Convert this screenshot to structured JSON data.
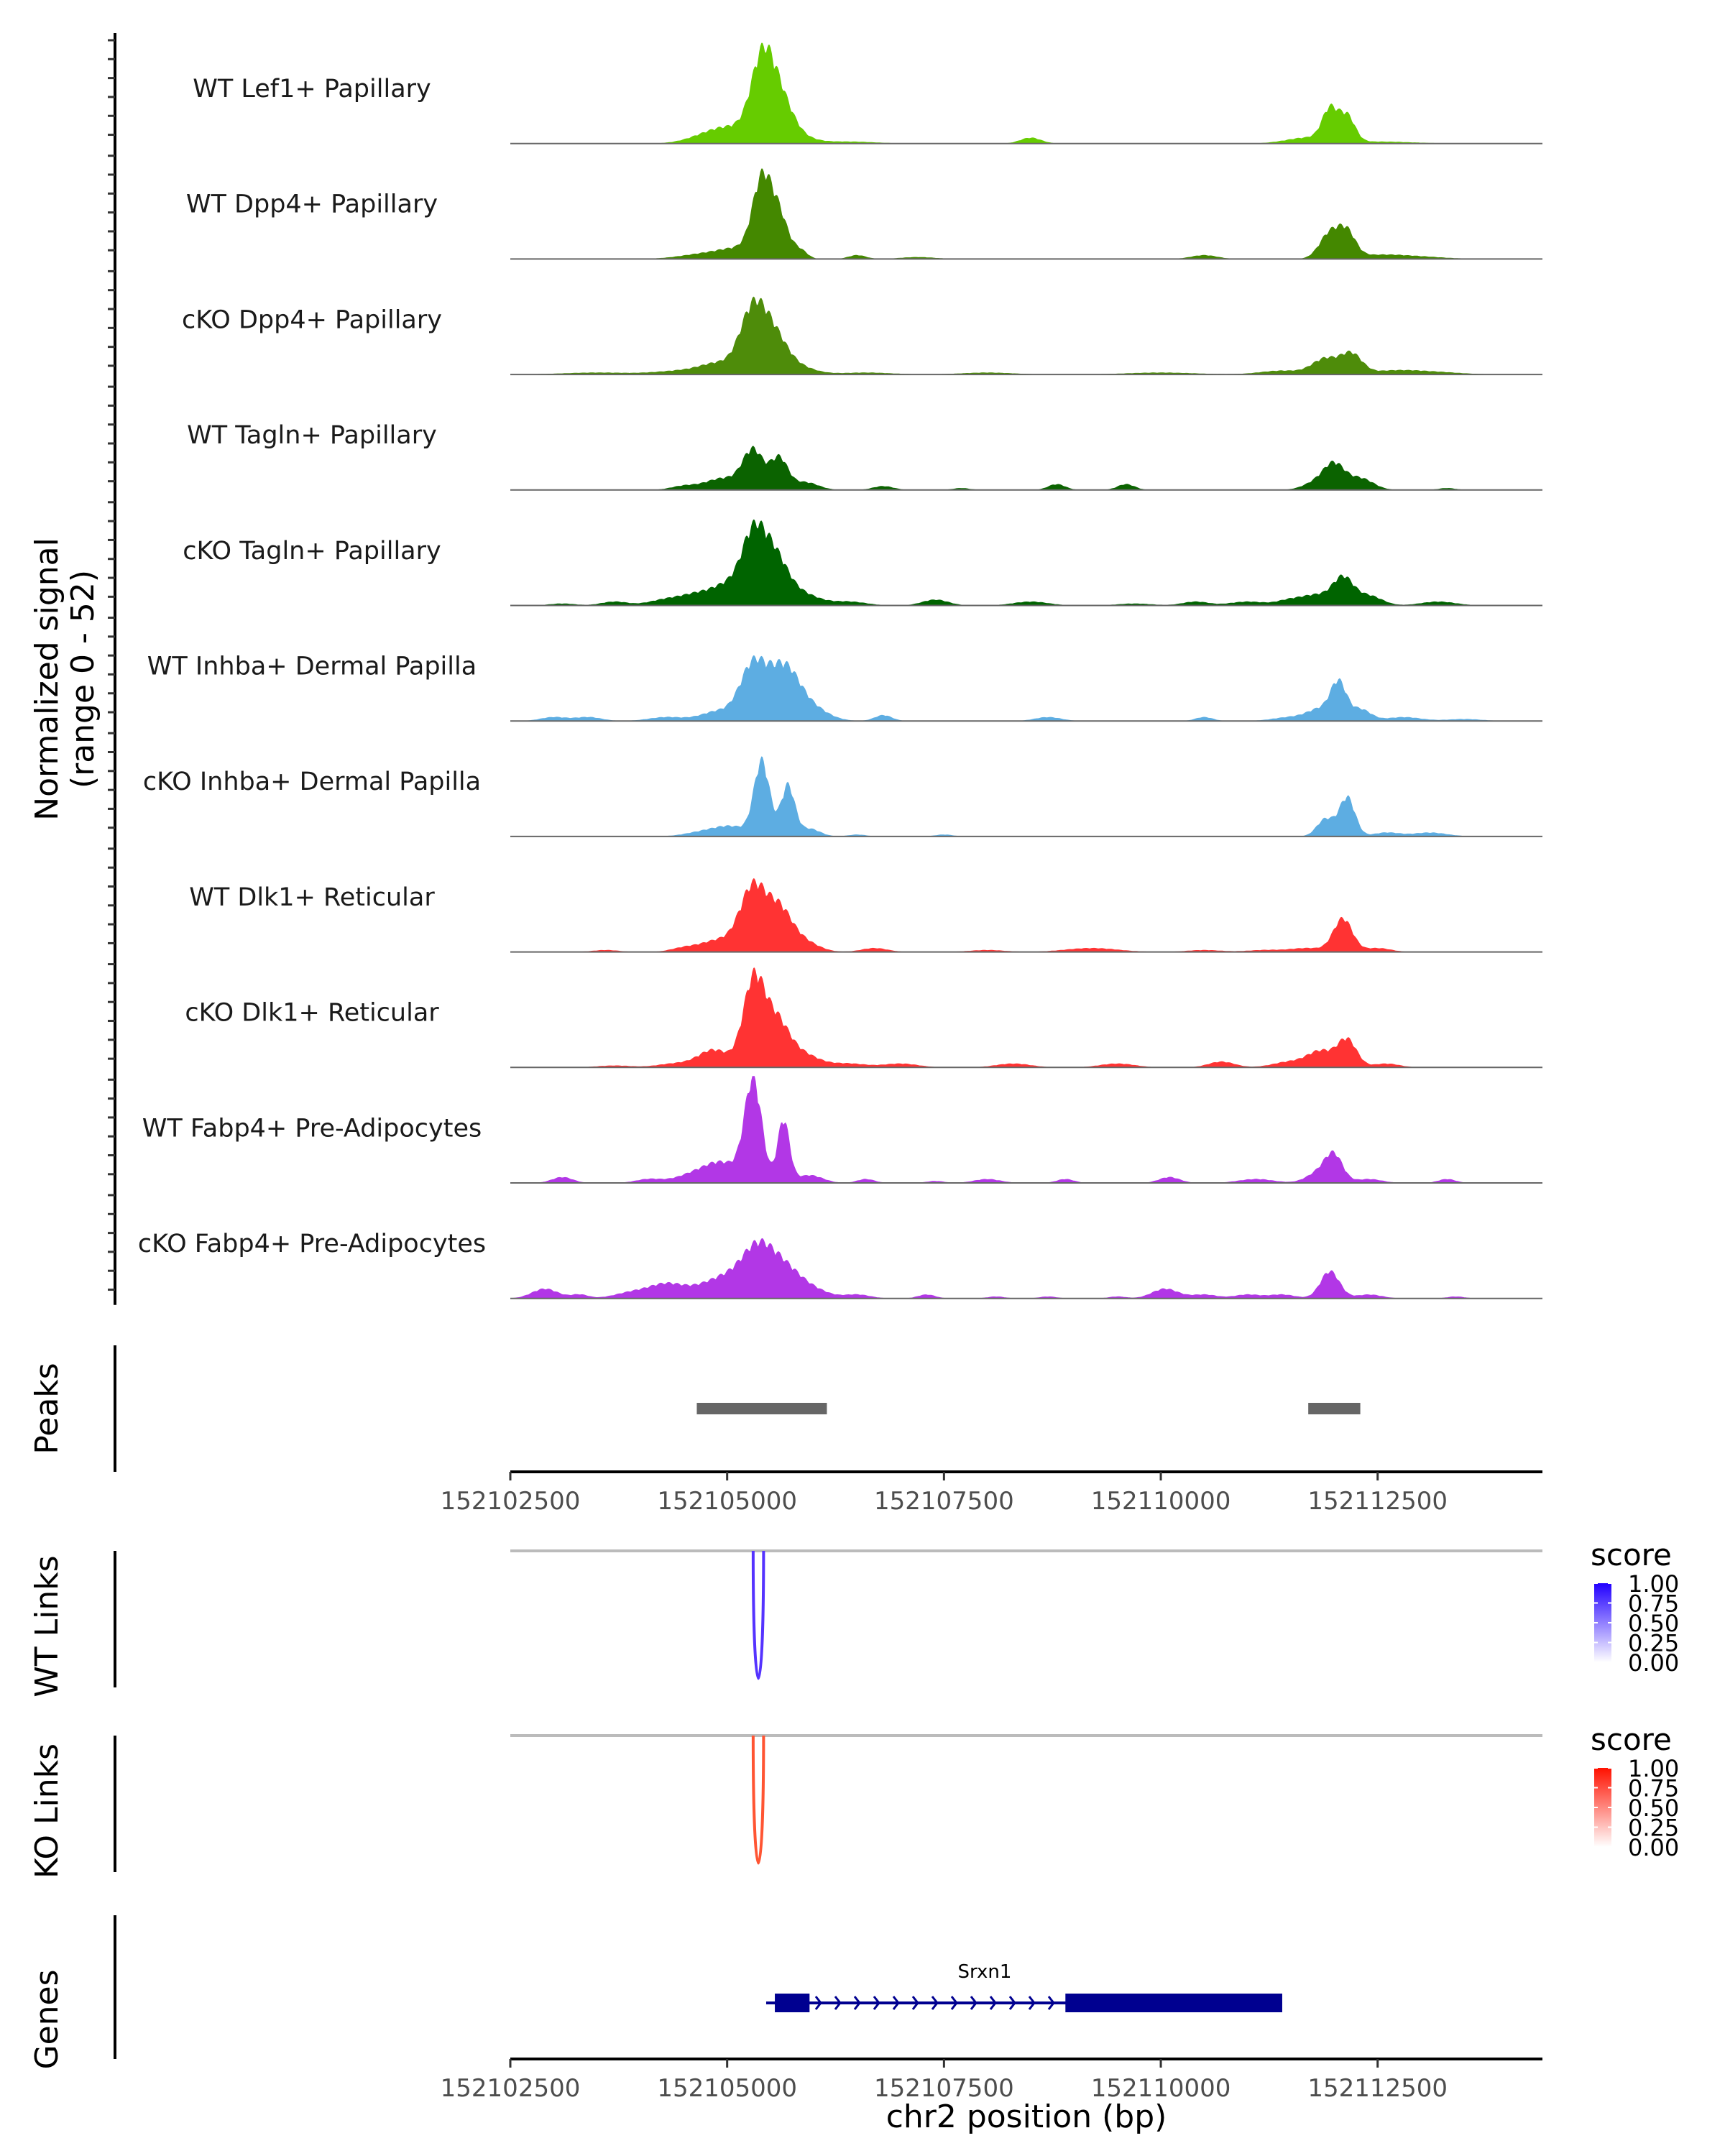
{
  "chart_data": {
    "type": "area",
    "title": "",
    "xlabel": "chr2 position (bp)",
    "ylabel": "Normalized signal\n(range 0 - 52)",
    "ylabel_lines": [
      "Normalized signal",
      "(range 0 - 52)"
    ],
    "xlim": [
      152102500,
      152114400
    ],
    "ylim": [
      0,
      52
    ],
    "x_ticks": [
      152102500,
      152105000,
      152107500,
      152110000,
      152112500
    ],
    "x_tick_labels": [
      "152102500",
      "152105000",
      "152107500",
      "152110000",
      "152112500"
    ],
    "coverage_tracks": [
      {
        "name": "WT Lef1+ Papillary",
        "color": "#66CC00",
        "peaks": [
          [
            152104700,
            2,
            220
          ],
          [
            152105050,
            8,
            260
          ],
          [
            152105400,
            37,
            130
          ],
          [
            152105600,
            21,
            150
          ],
          [
            152105800,
            3,
            200
          ],
          [
            152106400,
            1,
            300
          ],
          [
            152108500,
            3,
            120
          ],
          [
            152111700,
            3,
            250
          ],
          [
            152111950,
            16,
            90
          ],
          [
            152112150,
            13,
            90
          ],
          [
            152112500,
            1,
            400
          ]
        ]
      },
      {
        "name": "WT Dpp4+ Papillary",
        "color": "#448800",
        "peaks": [
          [
            152104800,
            3,
            300
          ],
          [
            152105150,
            4,
            200
          ],
          [
            152105400,
            38,
            110
          ],
          [
            152105600,
            21,
            110
          ],
          [
            152105850,
            4,
            80
          ],
          [
            152106500,
            2,
            100
          ],
          [
            152107200,
            1,
            200
          ],
          [
            152110500,
            2,
            150
          ],
          [
            152111950,
            13,
            120
          ],
          [
            152112150,
            12,
            100
          ],
          [
            152112500,
            2,
            300
          ],
          [
            152113000,
            1,
            300
          ]
        ]
      },
      {
        "name": "cKO Dpp4+ Papillary",
        "color": "#4E8C0A",
        "peaks": [
          [
            152103500,
            1,
            400
          ],
          [
            152104500,
            2,
            300
          ],
          [
            152104900,
            5,
            200
          ],
          [
            152105300,
            33,
            150
          ],
          [
            152105550,
            16,
            150
          ],
          [
            152105800,
            4,
            200
          ],
          [
            152106600,
            1,
            300
          ],
          [
            152108000,
            1,
            300
          ],
          [
            152110000,
            1,
            400
          ],
          [
            152111400,
            2,
            250
          ],
          [
            152111900,
            8,
            150
          ],
          [
            152112200,
            10,
            120
          ],
          [
            152112700,
            2,
            300
          ],
          [
            152113200,
            1,
            300
          ]
        ]
      },
      {
        "name": "WT Tagln+ Papillary",
        "color": "#0B6300",
        "peaks": [
          [
            152104500,
            2,
            150
          ],
          [
            152104950,
            6,
            200
          ],
          [
            152105300,
            20,
            120
          ],
          [
            152105600,
            16,
            100
          ],
          [
            152105900,
            4,
            150
          ],
          [
            152106800,
            2,
            120
          ],
          [
            152107700,
            1,
            100
          ],
          [
            152108800,
            3,
            100
          ],
          [
            152109600,
            3,
            100
          ],
          [
            152111800,
            4,
            150
          ],
          [
            152112000,
            12,
            120
          ],
          [
            152112300,
            6,
            150
          ],
          [
            152113300,
            1,
            100
          ]
        ]
      },
      {
        "name": "cKO Tagln+ Papillary",
        "color": "#006400",
        "peaks": [
          [
            152103100,
            1,
            150
          ],
          [
            152103700,
            2,
            150
          ],
          [
            152104300,
            3,
            200
          ],
          [
            152104700,
            6,
            200
          ],
          [
            152105000,
            8,
            150
          ],
          [
            152105300,
            35,
            140
          ],
          [
            152105550,
            22,
            150
          ],
          [
            152105850,
            6,
            200
          ],
          [
            152106400,
            2,
            200
          ],
          [
            152107400,
            3,
            150
          ],
          [
            152108500,
            2,
            200
          ],
          [
            152109700,
            1,
            200
          ],
          [
            152110400,
            2,
            150
          ],
          [
            152111000,
            2,
            200
          ],
          [
            152111500,
            3,
            150
          ],
          [
            152111800,
            5,
            150
          ],
          [
            152112100,
            14,
            120
          ],
          [
            152112400,
            5,
            150
          ],
          [
            152113200,
            2,
            200
          ]
        ]
      },
      {
        "name": "WT Inhba+ Dermal Papilla",
        "color": "#5DADE2",
        "peaks": [
          [
            152103000,
            2,
            150
          ],
          [
            152103400,
            2,
            150
          ],
          [
            152104300,
            2,
            200
          ],
          [
            152104900,
            5,
            200
          ],
          [
            152105300,
            28,
            150
          ],
          [
            152105650,
            26,
            170
          ],
          [
            152105950,
            7,
            200
          ],
          [
            152106800,
            3,
            100
          ],
          [
            152108700,
            2,
            150
          ],
          [
            152110500,
            2,
            100
          ],
          [
            152111500,
            2,
            200
          ],
          [
            152111850,
            6,
            150
          ],
          [
            152112050,
            18,
            90
          ],
          [
            152112300,
            6,
            120
          ],
          [
            152112800,
            2,
            200
          ],
          [
            152113500,
            1,
            200
          ]
        ]
      },
      {
        "name": "cKO Inhba+ Dermal Papilla",
        "color": "#5DADE2",
        "peaks": [
          [
            152104700,
            2,
            200
          ],
          [
            152105050,
            5,
            200
          ],
          [
            152105400,
            38,
            90
          ],
          [
            152105700,
            26,
            80
          ],
          [
            152105950,
            4,
            120
          ],
          [
            152106500,
            1,
            100
          ],
          [
            152107500,
            1,
            100
          ],
          [
            152111900,
            9,
            100
          ],
          [
            152112150,
            20,
            90
          ],
          [
            152112600,
            2,
            150
          ],
          [
            152113100,
            2,
            200
          ]
        ]
      },
      {
        "name": "WT Dlk1+ Reticular",
        "color": "#FF3333",
        "peaks": [
          [
            152103600,
            1,
            150
          ],
          [
            152104500,
            2,
            150
          ],
          [
            152104900,
            6,
            200
          ],
          [
            152105300,
            33,
            150
          ],
          [
            152105600,
            19,
            140
          ],
          [
            152105850,
            6,
            180
          ],
          [
            152106700,
            2,
            150
          ],
          [
            152108000,
            1,
            200
          ],
          [
            152109200,
            2,
            300
          ],
          [
            152110500,
            1,
            200
          ],
          [
            152111200,
            1,
            200
          ],
          [
            152111700,
            2,
            200
          ],
          [
            152112100,
            17,
            110
          ],
          [
            152112500,
            2,
            150
          ]
        ]
      },
      {
        "name": "cKO Dlk1+ Reticular",
        "color": "#FF3333",
        "peaks": [
          [
            152103700,
            1,
            200
          ],
          [
            152104400,
            2,
            200
          ],
          [
            152104850,
            9,
            180
          ],
          [
            152105300,
            42,
            120
          ],
          [
            152105550,
            23,
            150
          ],
          [
            152105850,
            7,
            200
          ],
          [
            152106400,
            2,
            200
          ],
          [
            152107000,
            2,
            200
          ],
          [
            152108300,
            2,
            200
          ],
          [
            152109500,
            2,
            200
          ],
          [
            152110700,
            3,
            150
          ],
          [
            152111500,
            3,
            200
          ],
          [
            152111850,
            8,
            150
          ],
          [
            152112150,
            14,
            110
          ],
          [
            152112600,
            2,
            150
          ]
        ]
      },
      {
        "name": "WT Fabp4+ Pre-Adipocytes",
        "color": "#B237E6",
        "peaks": [
          [
            152103100,
            3,
            120
          ],
          [
            152104100,
            2,
            150
          ],
          [
            152104600,
            4,
            200
          ],
          [
            152104950,
            10,
            200
          ],
          [
            152105300,
            52,
            100
          ],
          [
            152105650,
            32,
            70
          ],
          [
            152105950,
            4,
            150
          ],
          [
            152106600,
            2,
            100
          ],
          [
            152107400,
            1,
            100
          ],
          [
            152108000,
            2,
            150
          ],
          [
            152108900,
            2,
            100
          ],
          [
            152110100,
            3,
            120
          ],
          [
            152111100,
            2,
            200
          ],
          [
            152111850,
            6,
            150
          ],
          [
            152112000,
            12,
            100
          ],
          [
            152112400,
            2,
            150
          ],
          [
            152113300,
            2,
            100
          ]
        ]
      },
      {
        "name": "cKO Fabp4+ Pre-Adipocytes",
        "color": "#B237E6",
        "peaks": [
          [
            152102900,
            5,
            150
          ],
          [
            152103300,
            2,
            100
          ],
          [
            152103900,
            3,
            200
          ],
          [
            152104300,
            7,
            200
          ],
          [
            152104700,
            4,
            200
          ],
          [
            152105000,
            9,
            200
          ],
          [
            152105350,
            24,
            180
          ],
          [
            152105650,
            13,
            180
          ],
          [
            152105950,
            5,
            200
          ],
          [
            152106500,
            2,
            150
          ],
          [
            152107300,
            2,
            100
          ],
          [
            152108100,
            1,
            100
          ],
          [
            152108700,
            1,
            100
          ],
          [
            152109500,
            1,
            100
          ],
          [
            152110050,
            5,
            150
          ],
          [
            152110500,
            2,
            150
          ],
          [
            152111000,
            2,
            150
          ],
          [
            152111400,
            2,
            150
          ],
          [
            152111950,
            14,
            110
          ],
          [
            152112400,
            2,
            150
          ],
          [
            152113400,
            1,
            100
          ]
        ]
      }
    ],
    "peaks_track": {
      "label": "Peaks",
      "color": "#666666",
      "regions": [
        [
          152104650,
          152106150
        ],
        [
          152111700,
          152112300
        ]
      ]
    },
    "links_tracks": [
      {
        "label": "WT Links",
        "color": "#5533FF",
        "links": [
          {
            "start": 152105300,
            "end": 152105420,
            "score": 0.8
          }
        ],
        "legend": {
          "title": "score",
          "ticks": [
            "1.00",
            "0.75",
            "0.50",
            "0.25",
            "0.00"
          ],
          "low": "#FFFFFF",
          "high": "#2200FF"
        }
      },
      {
        "label": "KO Links",
        "color": "#FF5533",
        "links": [
          {
            "start": 152105300,
            "end": 152105420,
            "score": 0.8
          }
        ],
        "legend": {
          "title": "score",
          "ticks": [
            "1.00",
            "0.75",
            "0.50",
            "0.25",
            "0.00"
          ],
          "low": "#FFFFFF",
          "high": "#FF1100"
        }
      }
    ],
    "genes_track": {
      "label": "Genes",
      "color": "#000090",
      "genes": [
        {
          "name": "Srxn1",
          "strand": "+",
          "start": 152105450,
          "end": 152111400,
          "exons": [
            [
              152105550,
              152105950
            ],
            [
              152108900,
              152111400
            ]
          ]
        }
      ]
    }
  }
}
